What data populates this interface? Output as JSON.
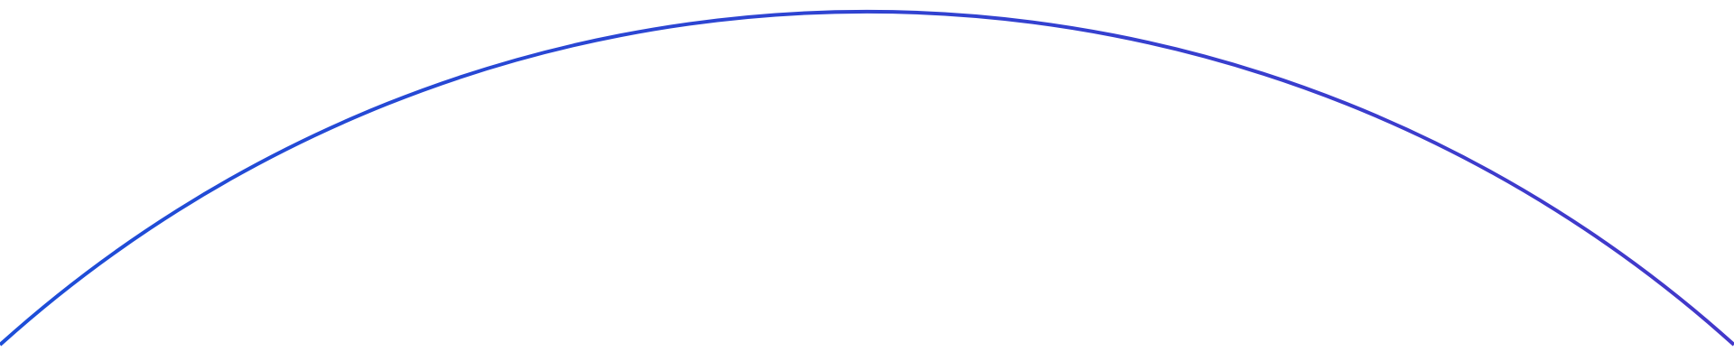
{
  "arc": {
    "color_start": "#1d4ed8",
    "color_end": "#4338ca",
    "background": "#ffffff"
  }
}
